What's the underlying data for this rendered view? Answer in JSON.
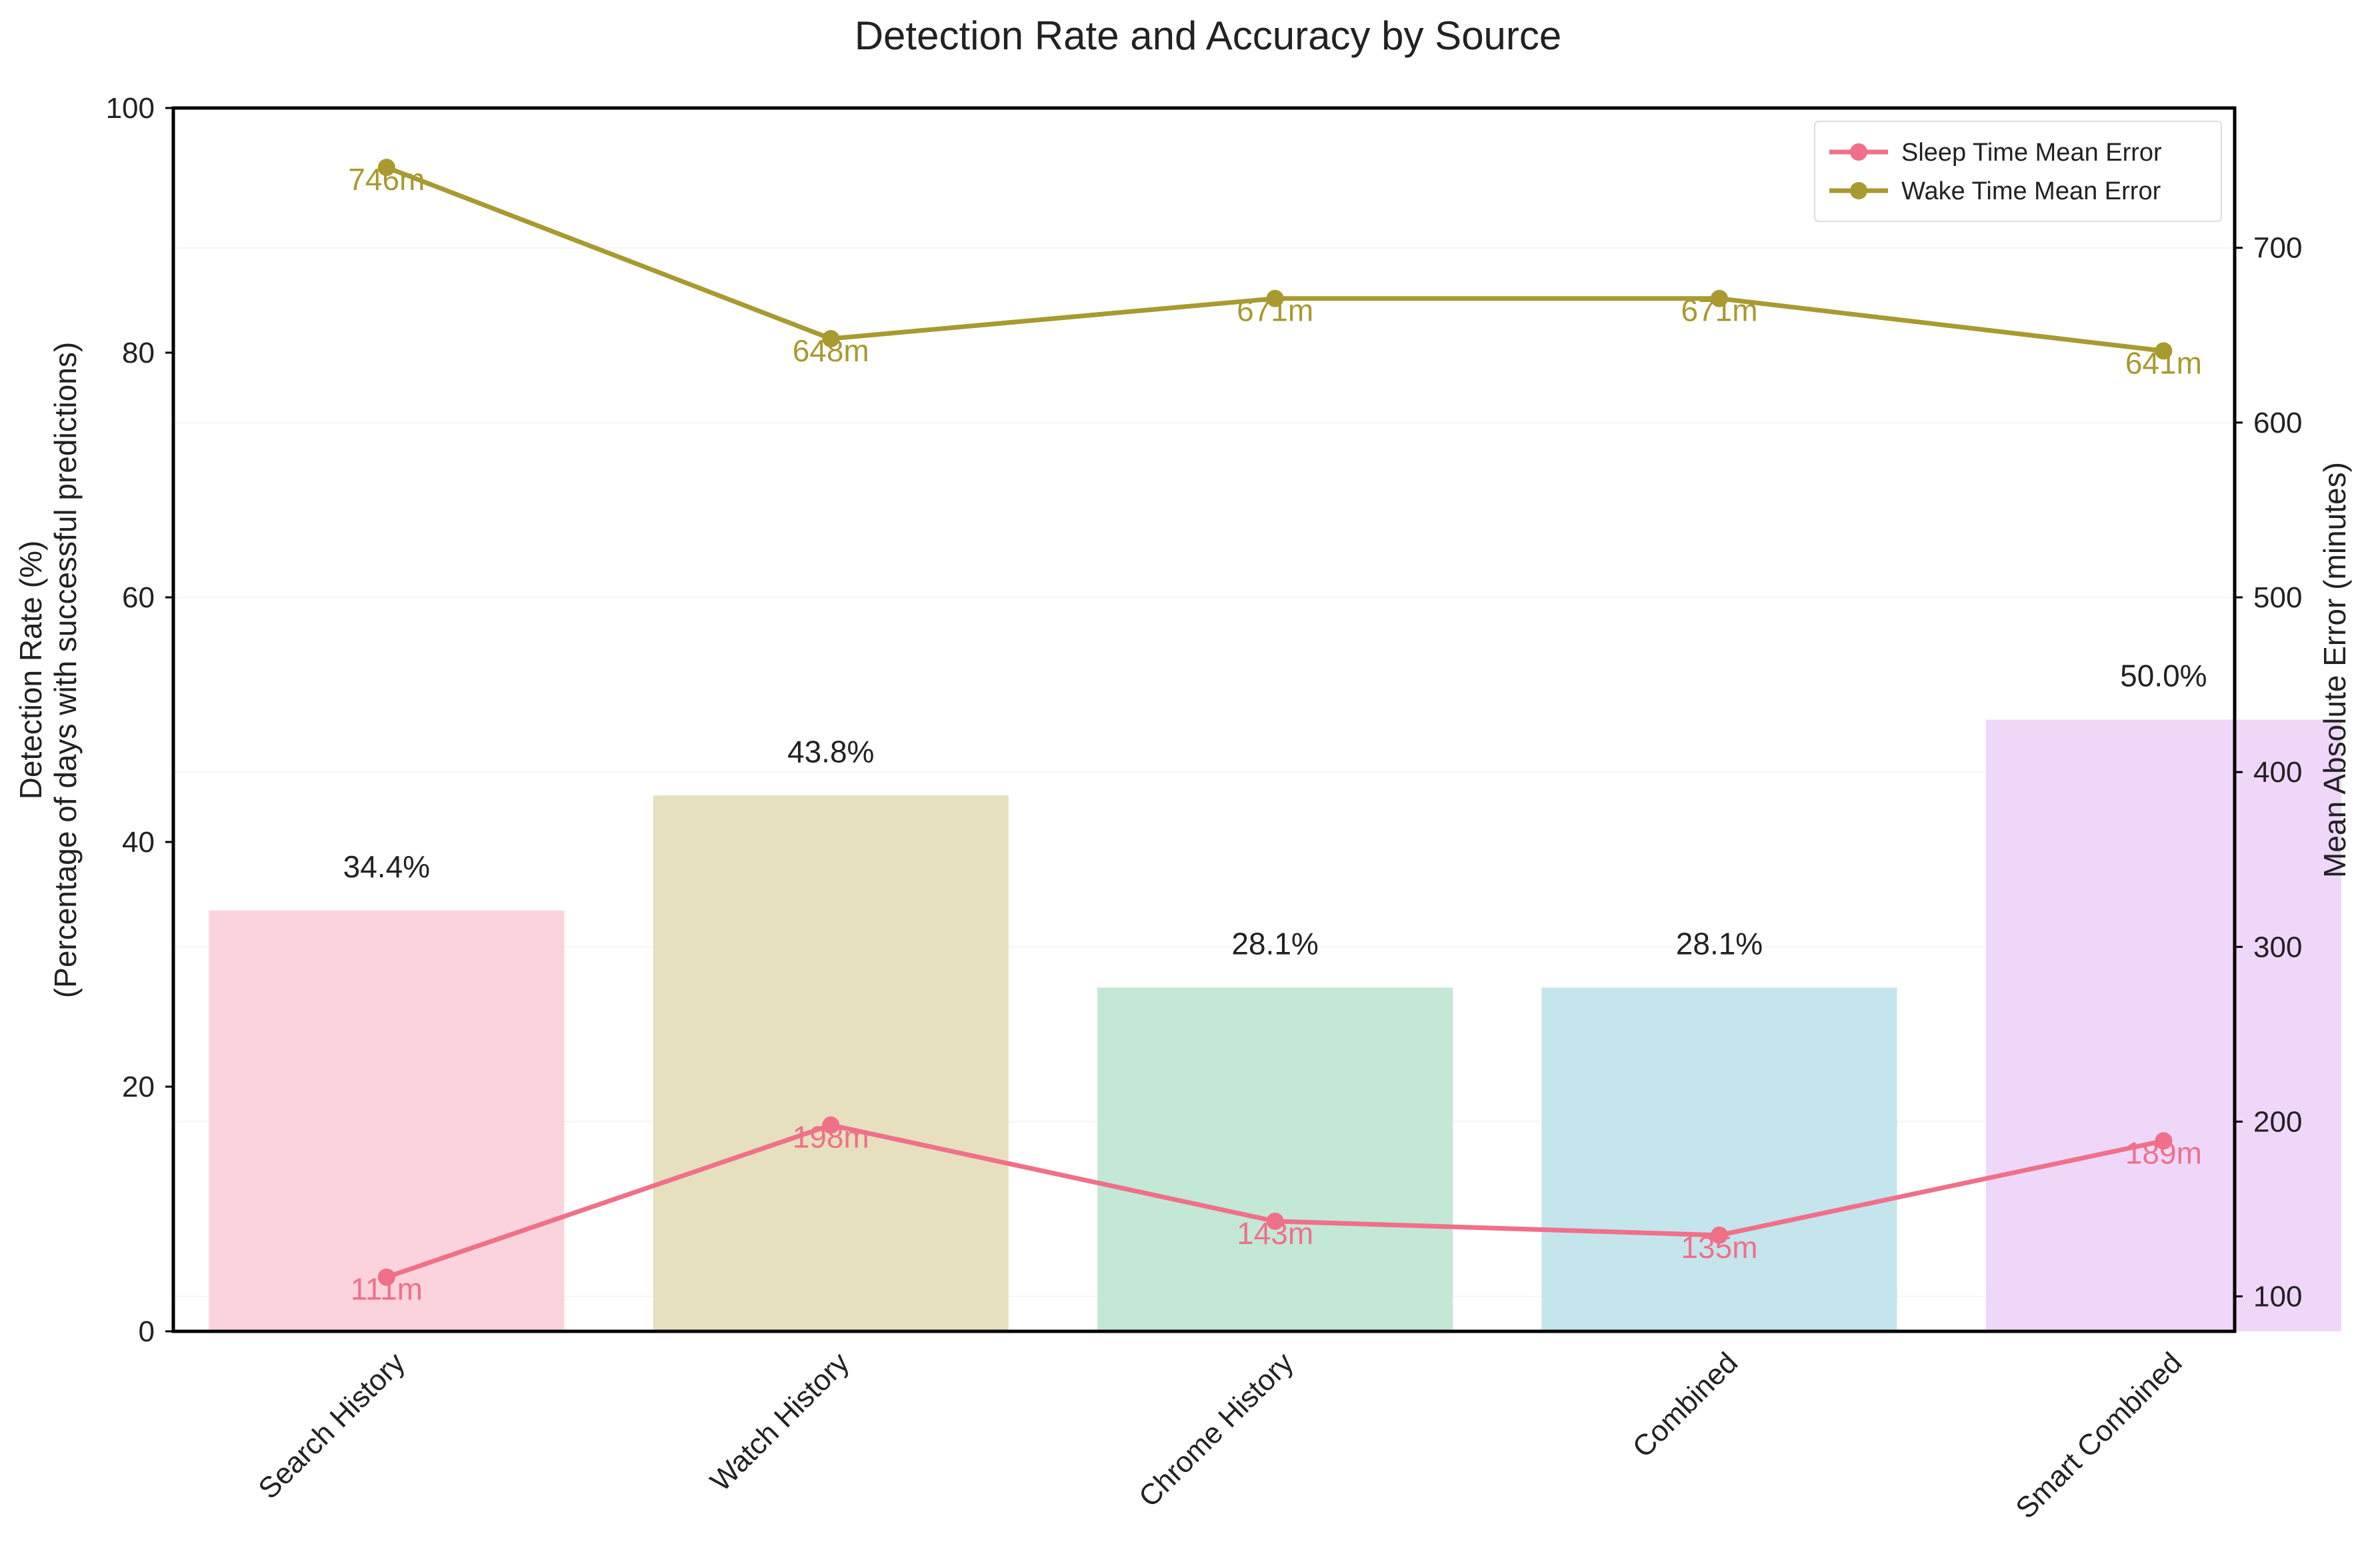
{
  "chart_data": {
    "type": "bar",
    "title": "Detection Rate and Accuracy by Source",
    "categories": [
      "Search History",
      "Watch History",
      "Chrome History",
      "Combined",
      "Smart Combined"
    ],
    "bars": {
      "values": [
        34.4,
        43.8,
        28.1,
        28.1,
        50.0
      ],
      "labels": [
        "34.4%",
        "43.8%",
        "28.1%",
        "28.1%",
        "50.0%"
      ],
      "colors": [
        "#fbd3dd",
        "#e6e0bf",
        "#c3e8d5",
        "#c5e5ec",
        "#efd7f9"
      ]
    },
    "y_left": {
      "label_line1": "Detection Rate (%)",
      "label_line2": "(Percentage of days with successful predictions)",
      "ylim": [
        0,
        100
      ],
      "ticks": [
        0,
        20,
        40,
        60,
        80,
        100
      ]
    },
    "y_right": {
      "label": "Mean Absolute Error (minutes)",
      "ylim": [
        80,
        780
      ],
      "ticks": [
        100,
        200,
        300,
        400,
        500,
        600,
        700
      ]
    },
    "series": [
      {
        "name": "Sleep Time Mean Error",
        "values": [
          111,
          198,
          143,
          135,
          189
        ],
        "labels": [
          "111m",
          "198m",
          "143m",
          "135m",
          "189m"
        ],
        "color": "#f07089"
      },
      {
        "name": "Wake Time Mean Error",
        "values": [
          746,
          648,
          671,
          671,
          641
        ],
        "labels": [
          "746m",
          "648m",
          "671m",
          "671m",
          "641m"
        ],
        "color": "#a89a30"
      }
    ],
    "legend": {
      "position": "top-right"
    },
    "grid": true
  }
}
